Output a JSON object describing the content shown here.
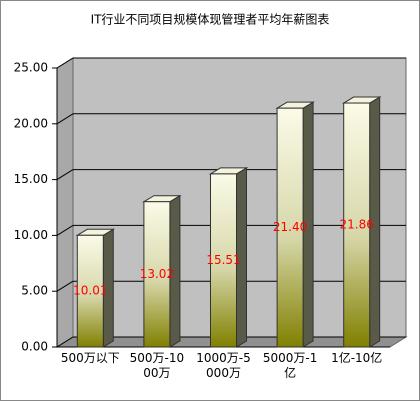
{
  "chart_data": {
    "type": "bar3d",
    "title": "IT行业不同项目规模体现管理者平均年薪图表",
    "categories": [
      "500万以下",
      "500万-1000万",
      "1000万-5000万",
      "5000万-1亿",
      "1亿-10亿"
    ],
    "values": [
      10.01,
      13.02,
      15.51,
      21.4,
      21.86
    ],
    "value_labels": [
      "10.01",
      "13.02",
      "15.51",
      "21.40",
      "21.86"
    ],
    "color": "#808000",
    "label_color": "#ff0000",
    "ylim": [
      0,
      25
    ],
    "yticks": [
      {
        "value": 0,
        "label": "0.00"
      },
      {
        "value": 5,
        "label": "5.00"
      },
      {
        "value": 10,
        "label": "10.00"
      },
      {
        "value": 15,
        "label": "15.00"
      },
      {
        "value": 20,
        "label": "20.00"
      },
      {
        "value": 25,
        "label": "25.00"
      }
    ],
    "grid": true
  }
}
